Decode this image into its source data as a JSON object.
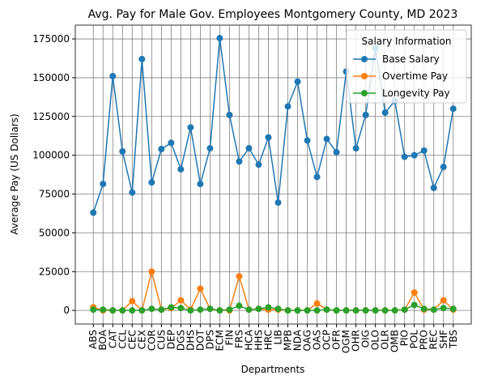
{
  "chart_data": {
    "type": "line",
    "title": "Avg. Pay for Male Gov. Employees Montgomery County, MD 2023",
    "x_label": "Departments",
    "y_label": "Average Pay (US Dollars)",
    "categories": [
      "ABS",
      "BOA",
      "CAT",
      "CCL",
      "CEC",
      "CEX",
      "COR",
      "CUS",
      "DEP",
      "DGS",
      "DHS",
      "DOT",
      "DPS",
      "ECM",
      "FIN",
      "FRS",
      "HCA",
      "HHS",
      "HRC",
      "LIB",
      "MPB",
      "NDA",
      "OAG",
      "OAS",
      "OCP",
      "OFR",
      "OGM",
      "OHR",
      "OIG",
      "OLO",
      "OLR",
      "OMB",
      "PIO",
      "POL",
      "PRO",
      "REC",
      "SHF",
      "TBS"
    ],
    "series": [
      {
        "name": "Base Salary",
        "color": "#1f77b4",
        "values": [
          63000,
          81500,
          151000,
          102500,
          76000,
          162000,
          82500,
          104000,
          108000,
          91000,
          118000,
          81500,
          104500,
          175500,
          126000,
          96000,
          104500,
          94000,
          111500,
          69500,
          131500,
          147500,
          109500,
          86000,
          110500,
          102000,
          154000,
          104500,
          126000,
          169000,
          127500,
          135000,
          99000,
          100000,
          103000,
          79000,
          92500,
          130000
        ]
      },
      {
        "name": "Overtime Pay",
        "color": "#ff7f0e",
        "values": [
          2000,
          0,
          0,
          0,
          6000,
          0,
          25000,
          500,
          1500,
          6500,
          500,
          14000,
          1000,
          0,
          0,
          22000,
          500,
          1000,
          500,
          500,
          0,
          0,
          0,
          4500,
          500,
          0,
          0,
          0,
          0,
          0,
          0,
          0,
          500,
          11500,
          500,
          500,
          6500,
          500
        ]
      },
      {
        "name": "Longevity Pay",
        "color": "#2ca02c",
        "values": [
          500,
          500,
          0,
          0,
          0,
          0,
          1000,
          500,
          2000,
          1500,
          0,
          500,
          1000,
          0,
          500,
          3000,
          500,
          1000,
          2000,
          1000,
          0,
          0,
          0,
          0,
          500,
          0,
          0,
          0,
          0,
          0,
          0,
          0,
          500,
          3500,
          1000,
          500,
          1500,
          1000
        ]
      }
    ],
    "legend_title": "Salary Information",
    "legend": "upper right",
    "ylim": [
      -8800,
      183900
    ],
    "yticks": [
      0,
      25000,
      50000,
      75000,
      100000,
      125000,
      150000,
      175000
    ],
    "grid": true
  }
}
